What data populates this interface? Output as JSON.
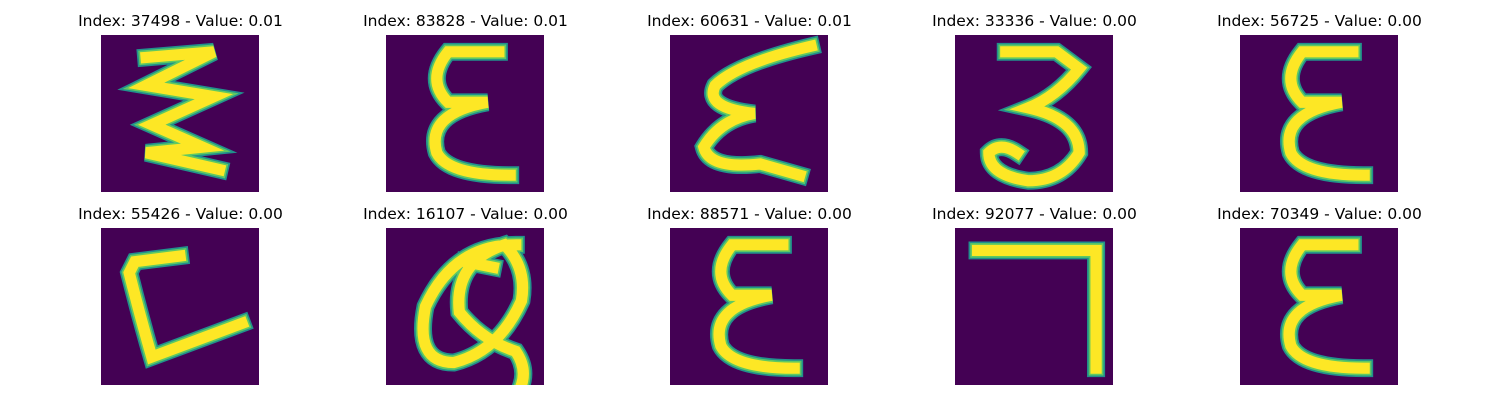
{
  "panels": [
    {
      "index": "37498",
      "value": "0.01",
      "glyph": "sigma-like"
    },
    {
      "index": "83828",
      "value": "0.01",
      "glyph": "epsilon"
    },
    {
      "index": "60631",
      "value": "0.01",
      "glyph": "epsilon-slanted"
    },
    {
      "index": "33336",
      "value": "0.00",
      "glyph": "three"
    },
    {
      "index": "56725",
      "value": "0.00",
      "glyph": "epsilon"
    },
    {
      "index": "55426",
      "value": "0.00",
      "glyph": "l-shape"
    },
    {
      "index": "16107",
      "value": "0.00",
      "glyph": "loop"
    },
    {
      "index": "88571",
      "value": "0.00",
      "glyph": "epsilon"
    },
    {
      "index": "92077",
      "value": "0.00",
      "glyph": "seven"
    },
    {
      "index": "70349",
      "value": "0.00",
      "glyph": "epsilon"
    }
  ],
  "title_prefix": "Index: ",
  "title_separator": " - Value: ",
  "colors": {
    "background": "#440154",
    "stroke_outer": "#21918c",
    "stroke_mid": "#5ec962",
    "stroke_core": "#fde725"
  }
}
